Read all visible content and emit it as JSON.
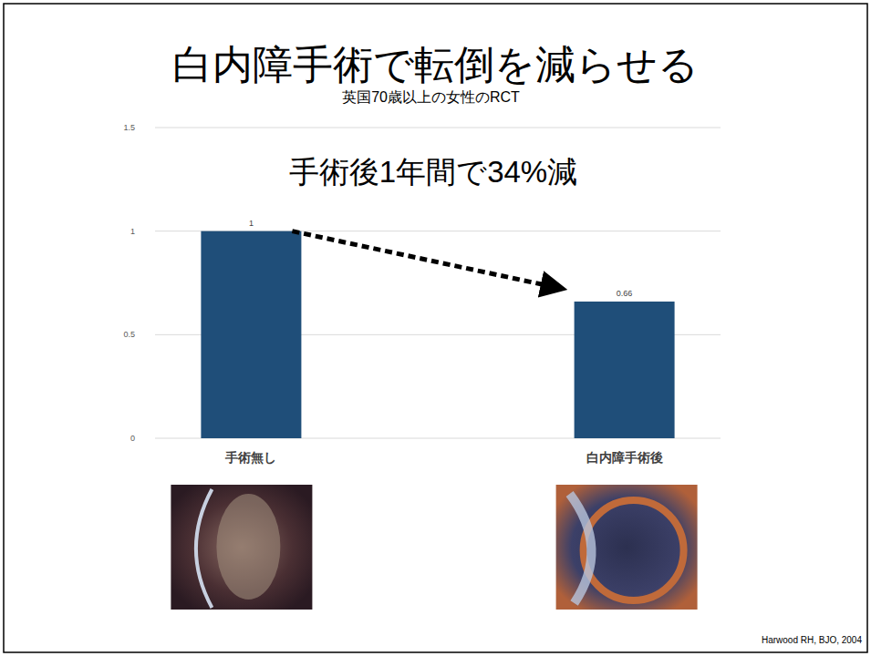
{
  "chart_data": {
    "type": "bar",
    "title": "白内障手術で転倒を減らせる",
    "subtitle": "英国70歳以上の女性のRCT",
    "annotation": "手術後1年間で34%減",
    "source": "Harwood RH, BJO, 2004",
    "categories": [
      "手術無し",
      "白内障手術後"
    ],
    "values": [
      1,
      0.66
    ],
    "color": "#1f4e79",
    "ylim": [
      0,
      1.5
    ],
    "yticks": [
      0,
      0.5,
      1,
      1.5
    ],
    "grid": true,
    "data_labels": true
  }
}
